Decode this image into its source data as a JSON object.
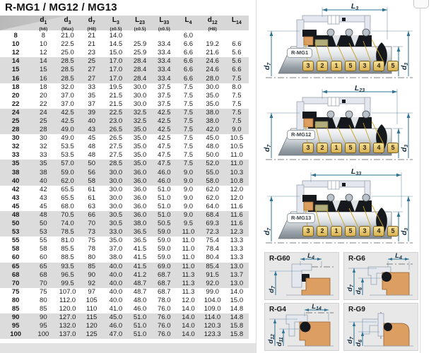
{
  "title": "R-MG1 / MG12 / MG13",
  "table": {
    "columns": [
      {
        "base": "",
        "sub": "",
        "note": ""
      },
      {
        "base": "d",
        "sub": "1",
        "note": "(h6)"
      },
      {
        "base": "d",
        "sub": "3",
        "note": "(Max)"
      },
      {
        "base": "d",
        "sub": "7",
        "note": "(H8)"
      },
      {
        "base": "L",
        "sub": "3",
        "note": "(±0.5)"
      },
      {
        "base": "L",
        "sub": "23",
        "note": "(±0.5)"
      },
      {
        "base": "L",
        "sub": "33",
        "note": "(±0.5)"
      },
      {
        "base": "L",
        "sub": "4",
        "note": ""
      },
      {
        "base": "d",
        "sub": "12",
        "note": "(H8)"
      },
      {
        "base": "L",
        "sub": "14",
        "note": ""
      }
    ],
    "rows": [
      [
        "8",
        "8",
        "21.0",
        "21",
        "14.0",
        "",
        "",
        "6.0",
        "",
        ""
      ],
      [
        "10",
        "10",
        "22.5",
        "21",
        "14.5",
        "25.9",
        "33.4",
        "6.6",
        "19.2",
        "6.6"
      ],
      [
        "12",
        "12",
        "25.0",
        "23",
        "15.0",
        "25.9",
        "33.4",
        "6.6",
        "21.6",
        "5.6"
      ],
      [
        "14",
        "14",
        "28.5",
        "25",
        "17.0",
        "28.4",
        "33.4",
        "6.6",
        "24.6",
        "5.6"
      ],
      [
        "15",
        "15",
        "28.5",
        "27",
        "17.0",
        "28.4",
        "33.4",
        "6.6",
        "24.6",
        "6.6"
      ],
      [
        "16",
        "16",
        "28.5",
        "27",
        "17.0",
        "28.4",
        "33.4",
        "6.6",
        "28.0",
        "7.5"
      ],
      [
        "18",
        "18",
        "32.0",
        "33",
        "19.5",
        "30.0",
        "37.5",
        "7.5",
        "30.0",
        "8.0"
      ],
      [
        "20",
        "20",
        "37.0",
        "35",
        "21.5",
        "30.0",
        "37.5",
        "7.5",
        "35.0",
        "7.5"
      ],
      [
        "22",
        "22",
        "37.0",
        "37",
        "21.5",
        "30.0",
        "37.5",
        "7.5",
        "35.0",
        "7.5"
      ],
      [
        "24",
        "24",
        "42.5",
        "39",
        "22.5",
        "32.5",
        "42.5",
        "7.5",
        "38.0",
        "7.5"
      ],
      [
        "25",
        "25",
        "42.5",
        "40",
        "23.0",
        "32.5",
        "42.5",
        "7.5",
        "38.0",
        "7.5"
      ],
      [
        "28",
        "28",
        "49.0",
        "43",
        "26.5",
        "35.0",
        "42.5",
        "7.5",
        "42.0",
        "9.0"
      ],
      [
        "30",
        "30",
        "49.0",
        "45",
        "26.5",
        "35.0",
        "42.5",
        "7.5",
        "45.0",
        "10.5"
      ],
      [
        "32",
        "32",
        "53.5",
        "48",
        "27.5",
        "35.0",
        "47.5",
        "7.5",
        "48.0",
        "10.5"
      ],
      [
        "33",
        "33",
        "53.5",
        "48",
        "27.5",
        "35.0",
        "47.5",
        "7.5",
        "50.0",
        "11.0"
      ],
      [
        "35",
        "35",
        "57.0",
        "50",
        "28.5",
        "35.0",
        "47.5",
        "7.5",
        "52.0",
        "11.0"
      ],
      [
        "38",
        "38",
        "59.0",
        "56",
        "30.0",
        "36.0",
        "46.0",
        "9.0",
        "55.0",
        "10.3"
      ],
      [
        "40",
        "40",
        "62.0",
        "58",
        "30.0",
        "36.0",
        "46.0",
        "9.0",
        "58.0",
        "10.8"
      ],
      [
        "42",
        "42",
        "65.5",
        "61",
        "30.0",
        "36.0",
        "51.0",
        "9.0",
        "62.0",
        "12.0"
      ],
      [
        "43",
        "43",
        "65.5",
        "61",
        "30.0",
        "36.0",
        "51.0",
        "9.0",
        "62.0",
        "12.0"
      ],
      [
        "45",
        "45",
        "68.0",
        "63",
        "30.0",
        "36.0",
        "51.0",
        "9.0",
        "64.0",
        "11.6"
      ],
      [
        "48",
        "48",
        "70.5",
        "66",
        "30.5",
        "36.0",
        "51.0",
        "9.0",
        "68.4",
        "11.6"
      ],
      [
        "50",
        "50",
        "74.0",
        "70",
        "30.5",
        "38.0",
        "50.5",
        "9.5",
        "69.3",
        "11.6"
      ],
      [
        "53",
        "53",
        "78.5",
        "73",
        "33.0",
        "36.5",
        "59.0",
        "11.0",
        "72.3",
        "12.3"
      ],
      [
        "55",
        "55",
        "81.0",
        "75",
        "35.0",
        "36.5",
        "59.0",
        "11.0",
        "75.4",
        "13.3"
      ],
      [
        "58",
        "58",
        "85.5",
        "78",
        "37.0",
        "41.5",
        "59.0",
        "11.0",
        "78.4",
        "13.3"
      ],
      [
        "60",
        "60",
        "88.5",
        "80",
        "38.0",
        "41.5",
        "59.0",
        "11.0",
        "80.4",
        "13.3"
      ],
      [
        "65",
        "65",
        "93.5",
        "85",
        "40.0",
        "41.5",
        "69.0",
        "11.0",
        "85.4",
        "13.0"
      ],
      [
        "68",
        "68",
        "96.5",
        "90",
        "40.0",
        "41.2",
        "68.7",
        "11.3",
        "91.5",
        "13.7"
      ],
      [
        "70",
        "70",
        "99.5",
        "92",
        "40.0",
        "48.7",
        "68.7",
        "11.3",
        "92.0",
        "13.0"
      ],
      [
        "75",
        "75",
        "107.0",
        "97",
        "40.0",
        "48.7",
        "68.7",
        "11.3",
        "99.0",
        "14.0"
      ],
      [
        "80",
        "80",
        "112.0",
        "105",
        "40.0",
        "48.0",
        "78.0",
        "12.0",
        "104.0",
        "15.0"
      ],
      [
        "85",
        "85",
        "120.0",
        "110",
        "41.0",
        "46.0",
        "76.0",
        "14.0",
        "109.0",
        "14.8"
      ],
      [
        "90",
        "90",
        "127.0",
        "115",
        "45.0",
        "51.0",
        "76.0",
        "14.0",
        "114.0",
        "14.8"
      ],
      [
        "95",
        "95",
        "132.0",
        "120",
        "46.0",
        "51.0",
        "76.0",
        "14.0",
        "120.3",
        "15.8"
      ],
      [
        "100",
        "100",
        "137.0",
        "125",
        "47.0",
        "51.0",
        "76.0",
        "14.0",
        "123.3",
        "15.8"
      ]
    ]
  },
  "panels": [
    {
      "tag": "R-MG1",
      "dim": {
        "base": "L",
        "sub": "3"
      },
      "left_dim": {
        "base": "d",
        "sub": "7"
      },
      "right_dims": [
        {
          "base": "d",
          "sub": "1"
        },
        {
          "base": "d",
          "sub": "3"
        }
      ],
      "callouts": [
        "3",
        "2",
        "1",
        "5",
        "3",
        "4",
        "5"
      ]
    },
    {
      "tag": "R-MG12",
      "dim": {
        "base": "L",
        "sub": "23"
      },
      "left_dim": {
        "base": "d",
        "sub": "7"
      },
      "right_dims": [
        {
          "base": "d",
          "sub": "1"
        },
        {
          "base": "d",
          "sub": "3"
        }
      ],
      "callouts": [
        "3",
        "2",
        "1",
        "5",
        "3",
        "4",
        "5"
      ]
    },
    {
      "tag": "R-MG13",
      "dim": {
        "base": "L",
        "sub": "33"
      },
      "left_dim": {
        "base": "d",
        "sub": "7"
      },
      "right_dims": [
        {
          "base": "d",
          "sub": "1"
        },
        {
          "base": "d",
          "sub": "3"
        }
      ],
      "callouts": [
        "3",
        "2",
        "1",
        "5",
        "3",
        "4",
        "5"
      ]
    }
  ],
  "detail_panels": [
    {
      "label": "R-G60",
      "dim": {
        "base": "L",
        "sub": "4"
      },
      "left_dims": [
        {
          "base": "d",
          "sub": "7"
        }
      ]
    },
    {
      "label": "R-G6",
      "dim": {
        "base": "L",
        "sub": "4"
      },
      "left_dims": [
        {
          "base": "d",
          "sub": "7"
        },
        {
          "base": "d",
          "sub": "6"
        }
      ]
    },
    {
      "label": "R-G4",
      "dim": {
        "base": "L",
        "sub": "14"
      },
      "left_dims": [
        {
          "base": "d",
          "sub": "12"
        },
        {
          "base": "d",
          "sub": "11"
        }
      ]
    },
    {
      "label": "R-G9",
      "left_dims": [
        {
          "base": "d",
          "sub": "7"
        },
        {
          "base": "d",
          "sub": "6"
        }
      ]
    }
  ],
  "colors": {
    "dimension": "#2e7394",
    "stripe": "#dcdcdc",
    "header_band": "#d7d7d7",
    "callout_fill": "#e8c87a",
    "seal_orange": "#dd9e62",
    "seal_olive": "#b2ae7c",
    "seal_black": "#15181c"
  }
}
